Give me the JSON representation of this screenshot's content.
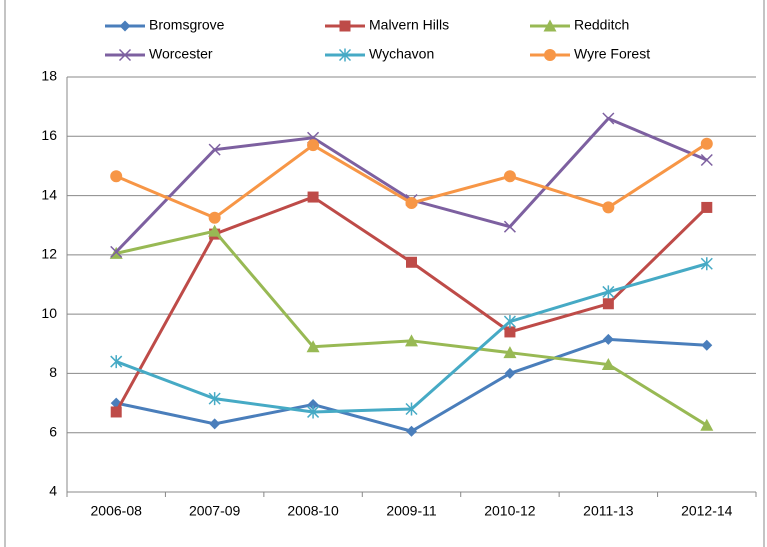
{
  "chart_data": {
    "type": "line",
    "categories": [
      "2006-08",
      "2007-09",
      "2008-10",
      "2009-11",
      "2010-12",
      "2011-13",
      "2012-14"
    ],
    "series": [
      {
        "name": "Bromsgrove",
        "color": "#4a7ebb",
        "marker": "diamond",
        "values": [
          7.0,
          6.3,
          6.95,
          6.05,
          8.0,
          9.15,
          8.95
        ]
      },
      {
        "name": "Malvern Hills",
        "color": "#be4b48",
        "marker": "square",
        "values": [
          6.7,
          12.7,
          13.95,
          11.75,
          9.4,
          10.35,
          13.6
        ]
      },
      {
        "name": "Redditch",
        "color": "#98b954",
        "marker": "triangle",
        "values": [
          12.05,
          12.8,
          8.9,
          9.1,
          8.7,
          8.3,
          6.25
        ]
      },
      {
        "name": "Worcester",
        "color": "#7d60a0",
        "marker": "x",
        "values": [
          12.1,
          15.55,
          15.95,
          13.85,
          12.95,
          16.6,
          15.2
        ]
      },
      {
        "name": "Wychavon",
        "color": "#46aac5",
        "marker": "star",
        "values": [
          8.4,
          7.15,
          6.7,
          6.8,
          9.75,
          10.75,
          11.7
        ]
      },
      {
        "name": "Wyre Forest",
        "color": "#f79646",
        "marker": "circle",
        "values": [
          14.65,
          13.25,
          15.7,
          13.75,
          14.65,
          13.6,
          15.75
        ]
      }
    ],
    "ylim": [
      4,
      18
    ],
    "yticks": [
      4,
      6,
      8,
      10,
      12,
      14,
      16,
      18
    ],
    "grid": true
  }
}
